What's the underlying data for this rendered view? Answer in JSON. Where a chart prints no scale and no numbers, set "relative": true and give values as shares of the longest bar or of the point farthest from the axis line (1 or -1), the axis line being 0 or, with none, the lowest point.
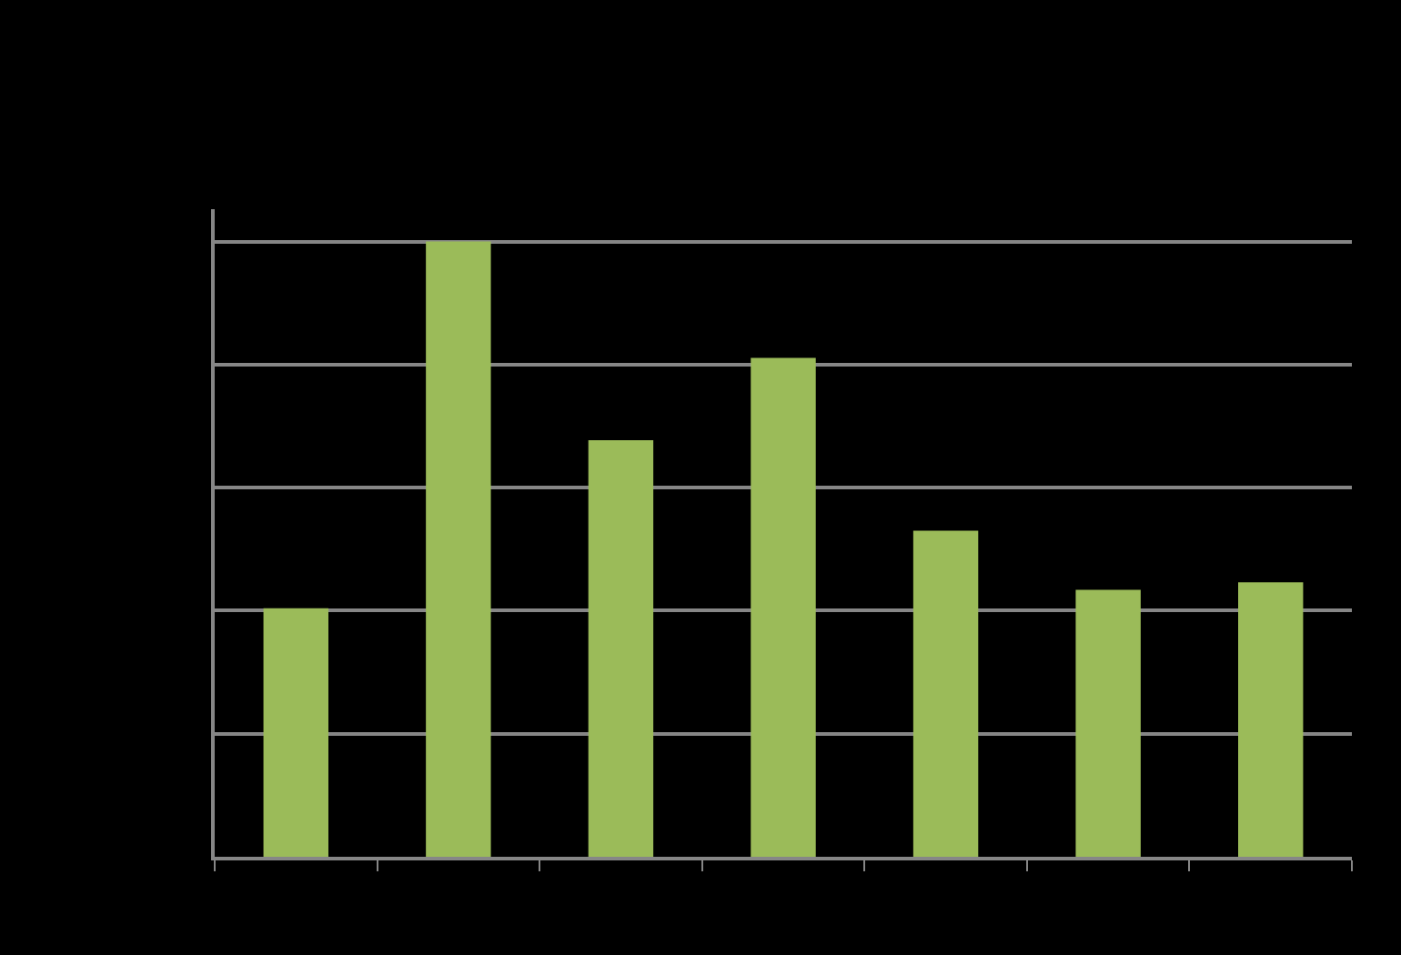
{
  "chart_data": {
    "type": "bar",
    "relative": true,
    "categories": [
      null,
      null,
      null,
      null,
      null,
      null,
      null
    ],
    "values": [
      0.404,
      1,
      0.677,
      0.811,
      0.53,
      0.434,
      0.446
    ],
    "color": "#9bbb59",
    "grid": "y"
  }
}
